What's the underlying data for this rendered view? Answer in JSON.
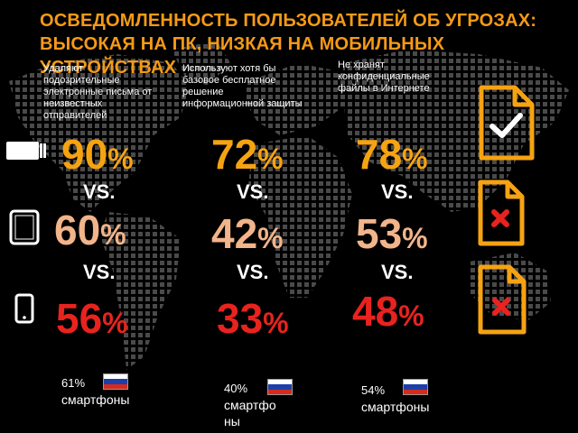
{
  "title_lines": [
    "ОСВЕДОМЛЕННОСТЬ ПОЛЬЗОВАТЕЛЕЙ ОБ УГРОЗАХ:",
    "ВЫСОКАЯ НА ПК, НИЗКАЯ НА МОБИЛЬНЫХ",
    "УСТРОЙСТВАХ"
  ],
  "columns": [
    {
      "description": [
        "Удаляют",
        "подозрительные",
        "электронные письма от",
        "неизвестных",
        "отправителей"
      ],
      "pc": "90",
      "tablet": "60",
      "smartphone": "56",
      "footnote_value": "61%",
      "footnote_label": "смартфоны"
    },
    {
      "description": [
        "Используют хотя бы",
        "базовое бесплатное",
        "решение",
        "информационной защиты"
      ],
      "pc": "72",
      "tablet": "42",
      "smartphone": "33",
      "footnote_value": "40%",
      "footnote_label": "смартфоны"
    },
    {
      "description": [
        "Не хранят",
        "конфиденциальные",
        "файлы в Интернете"
      ],
      "pc": "78",
      "tablet": "53",
      "smartphone": "48",
      "footnote_value": "54%",
      "footnote_label": "смартфоны"
    }
  ],
  "vs_label": "VS.",
  "percent_sign": "%",
  "devices": [
    "laptop-icon",
    "tablet-icon",
    "smartphone-icon"
  ],
  "document_icons": [
    "document-check-icon",
    "document-cross-icon",
    "document-cross-icon"
  ],
  "flag": "russia-flag-icon",
  "colors": {
    "background": "#000000",
    "title": "#f59a16",
    "pc_value": "#f6a312",
    "tablet_value": "#f2b48a",
    "smartphone_value": "#e8231f",
    "document_outline": "#f6a312",
    "check": "#ffffff",
    "cross": "#e8231f",
    "map_dots": "#4a4a4a",
    "flag_white": "#ffffff",
    "flag_blue": "#1c3fa8",
    "flag_red": "#d52b1e"
  }
}
